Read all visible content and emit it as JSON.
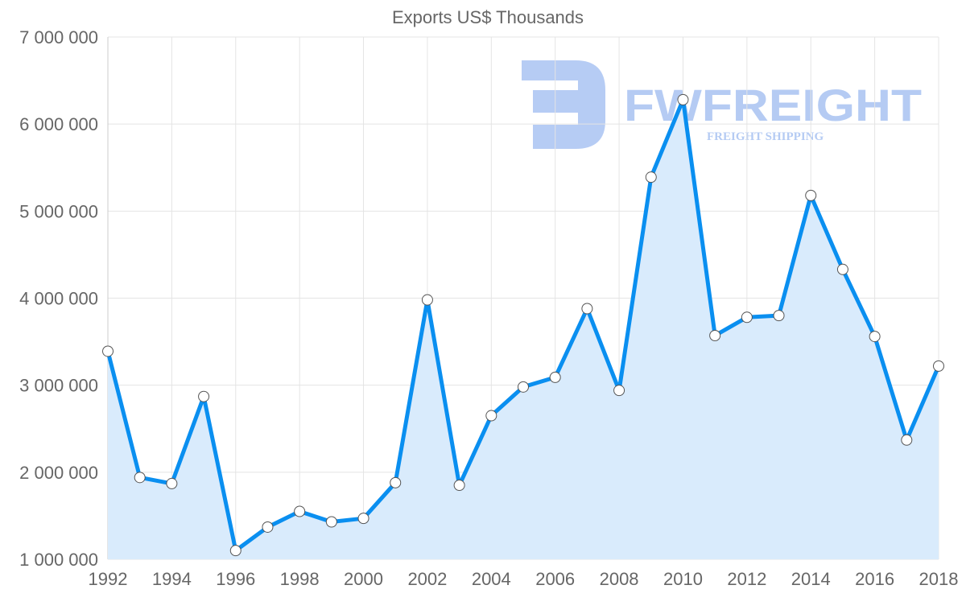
{
  "chart_data": {
    "type": "line",
    "title": "Exports US$ Thousands",
    "xlabel": "",
    "ylabel": "",
    "x": [
      1992,
      1993,
      1994,
      1995,
      1996,
      1997,
      1998,
      1999,
      2000,
      2001,
      2002,
      2003,
      2004,
      2005,
      2006,
      2007,
      2008,
      2009,
      2010,
      2011,
      2012,
      2013,
      2014,
      2015,
      2016,
      2017,
      2018
    ],
    "series": [
      {
        "name": "Exports US$ Thousands",
        "color": "#0a8ff0",
        "fill": "#d9ebfc",
        "values": [
          3390000,
          1940000,
          1870000,
          2870000,
          1100000,
          1370000,
          1550000,
          1430000,
          1470000,
          1880000,
          3980000,
          1850000,
          2650000,
          2980000,
          3090000,
          3880000,
          2940000,
          5390000,
          6280000,
          3570000,
          3780000,
          3800000,
          5180000,
          4330000,
          3560000,
          2370000,
          3220000
        ]
      }
    ],
    "ylim": [
      1000000,
      7000000
    ],
    "xlim": [
      1992,
      2018
    ],
    "yticks": [
      "1 000 000",
      "2 000 000",
      "3 000 000",
      "4 000 000",
      "5 000 000",
      "6 000 000",
      "7 000 000"
    ],
    "xticks": [
      "1992",
      "1994",
      "1996",
      "1998",
      "2000",
      "2002",
      "2004",
      "2006",
      "2008",
      "2010",
      "2012",
      "2014",
      "2016",
      "2018"
    ],
    "grid": true,
    "legend": "none"
  },
  "watermark": {
    "name": "FWFREIGHT",
    "tagline": "FREIGHT SHIPPING",
    "color": "#a9c3f2"
  }
}
